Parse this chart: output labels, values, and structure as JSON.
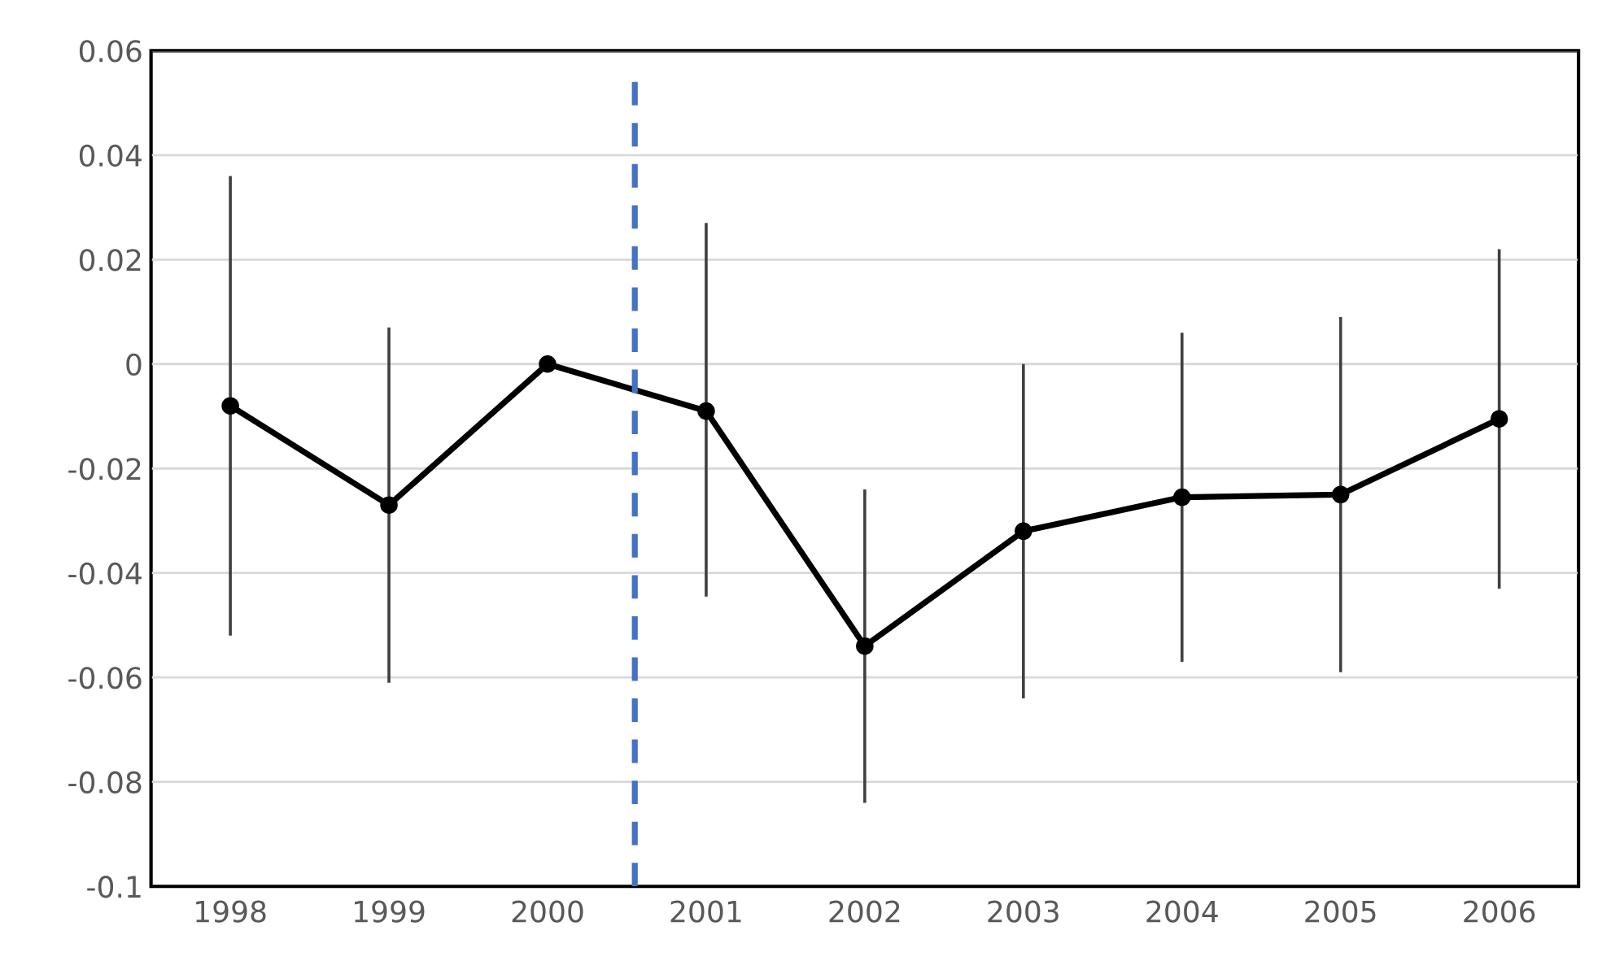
{
  "chart_data": {
    "type": "line",
    "x": [
      1998,
      1999,
      2000,
      2001,
      2002,
      2003,
      2004,
      2005,
      2006
    ],
    "series": [
      {
        "color": "#000000",
        "values": [
          -0.008,
          -0.027,
          0.0,
          -0.009,
          -0.054,
          -0.032,
          -0.0255,
          -0.025,
          -0.0105
        ],
        "errors": [
          [
            -0.052,
            0.036
          ],
          [
            -0.061,
            0.007
          ],
          null,
          [
            -0.0445,
            0.027
          ],
          [
            -0.084,
            -0.024
          ],
          [
            -0.064,
            0.0
          ],
          [
            -0.057,
            0.006
          ],
          [
            -0.059,
            0.009
          ],
          [
            -0.043,
            0.022
          ]
        ]
      }
    ],
    "xlim": [
      1997.5,
      2006.5
    ],
    "xticks": [
      1998,
      1999,
      2000,
      2001,
      2002,
      2003,
      2004,
      2005,
      2006
    ],
    "ylim": [
      -0.1,
      0.06
    ],
    "yticks": [
      {
        "value": -0.1,
        "label": "-0.1"
      },
      {
        "value": -0.08,
        "label": "-0.08"
      },
      {
        "value": -0.06,
        "label": "-0.06"
      },
      {
        "value": -0.04,
        "label": "-0.04"
      },
      {
        "value": -0.02,
        "label": "-0.02"
      },
      {
        "value": 0,
        "label": "0"
      },
      {
        "value": 0.02,
        "label": "0.02"
      },
      {
        "value": 0.04,
        "label": "0.04"
      },
      {
        "value": 0.06,
        "label": "0.06"
      }
    ],
    "ref_lines": [
      {
        "axis": "x",
        "value": 2000.55,
        "color": "#4472c4",
        "line_style": "dashed"
      }
    ],
    "grid": "y",
    "marker": "circle",
    "line_style": "solid"
  }
}
